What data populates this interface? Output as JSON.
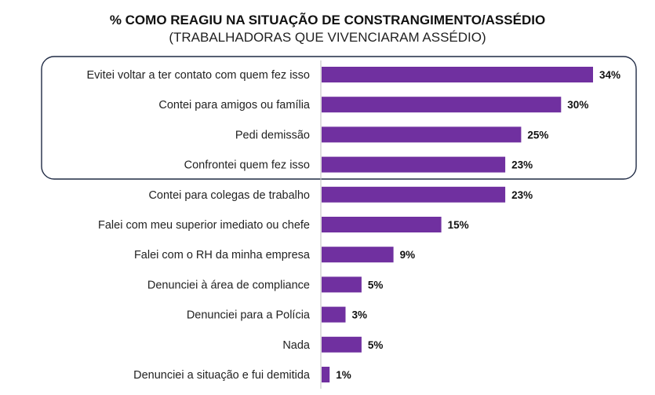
{
  "chart_data": {
    "type": "bar",
    "orientation": "horizontal",
    "title": "% COMO REAGIU NA SITUAÇÃO DE CONSTRANGIMENTO/ASSÉDIO",
    "subtitle": "(TRABALHADORAS QUE VIVENCIARAM ASSÉDIO)",
    "categories": [
      "Evitei voltar a ter contato com quem fez isso",
      "Contei para amigos ou família",
      "Pedi demissão",
      "Confrontei quem fez isso",
      "Contei para colegas de trabalho",
      "Falei com meu superior imediato ou chefe",
      "Falei com o RH da minha empresa",
      "Denunciei à área de compliance",
      "Denunciei para a Polícia",
      "Nada",
      "Denunciei a situação e fui demitida"
    ],
    "values": [
      34,
      30,
      25,
      23,
      23,
      15,
      9,
      5,
      3,
      5,
      1
    ],
    "value_labels": [
      "34%",
      "30%",
      "25%",
      "23%",
      "23%",
      "15%",
      "9%",
      "5%",
      "3%",
      "5%",
      "1%"
    ],
    "highlighted_categories": [
      0,
      1,
      2,
      3
    ],
    "xlim": [
      0,
      34
    ],
    "grid": false,
    "legend": "none",
    "colors": {
      "bar": "#7030a0",
      "axis": "#bfbfbf",
      "highlight_border": "#1f2a44"
    }
  }
}
